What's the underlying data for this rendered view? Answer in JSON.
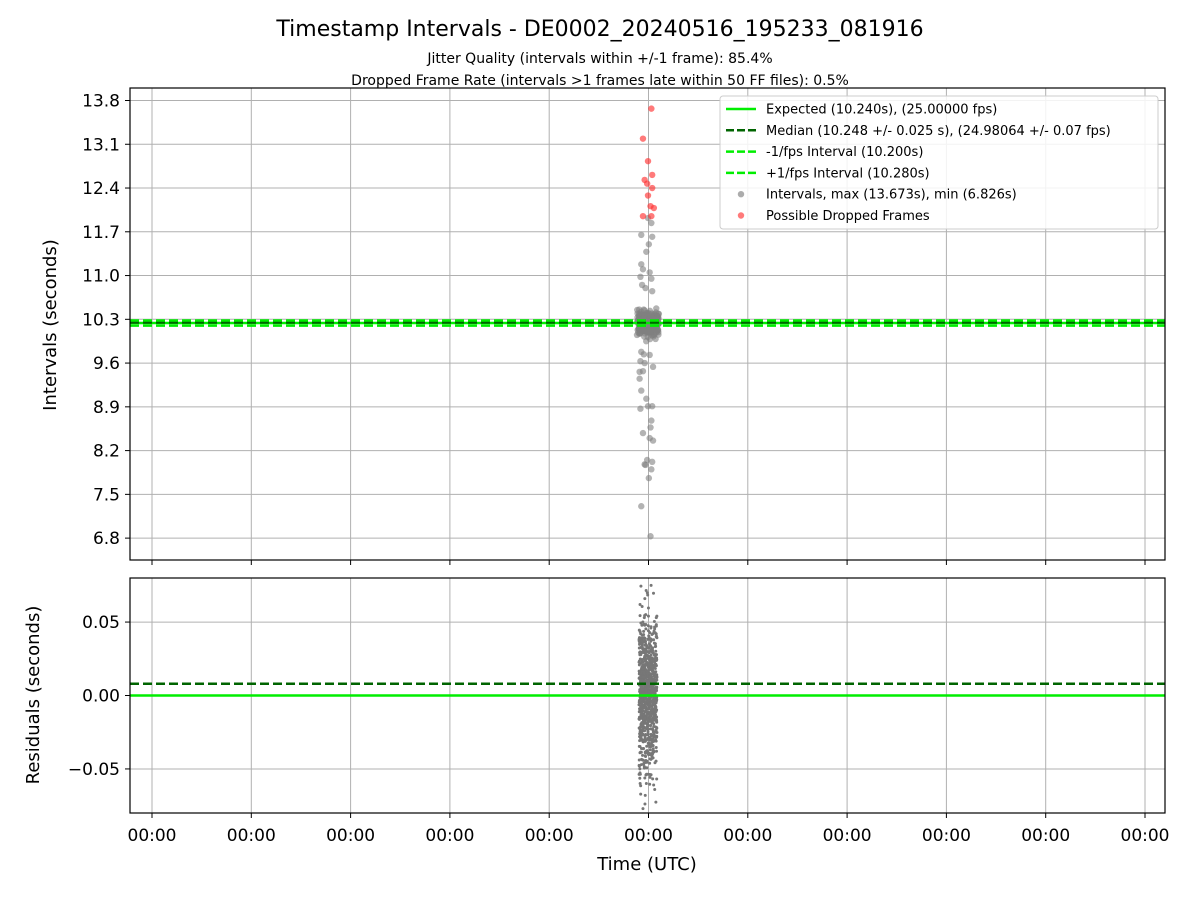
{
  "chart_data": {
    "type": "scatter",
    "title": "Timestamp Intervals - DE0002_20240516_195233_081916",
    "subtitle_1": "Jitter Quality (intervals within +/-1 frame): 85.4%",
    "subtitle_2": "Dropped Frame Rate (intervals >1 frames late within 50 FF files): 0.5%",
    "xlabel": "Time (UTC)",
    "x_tick_labels": [
      "00:00",
      "00:00",
      "00:00",
      "00:00",
      "00:00",
      "00:00",
      "00:00",
      "00:00",
      "00:00",
      "00:00",
      "00:00"
    ],
    "top_panel": {
      "ylabel": "Intervals (seconds)",
      "ylim": [
        6.45,
        14.0
      ],
      "y_ticks": [
        6.8,
        7.5,
        8.2,
        8.9,
        9.6,
        10.3,
        11.0,
        11.7,
        12.4,
        13.1,
        13.8
      ],
      "grid": true,
      "legend_position": "top-right",
      "lines": [
        {
          "name": "Expected (10.240s), (25.00000 fps)",
          "value": 10.24,
          "style": "solid",
          "color": "#00ee00"
        },
        {
          "name": "Median (10.248 +/- 0.025 s), (24.98064 +/- 0.07 fps)",
          "value": 10.248,
          "style": "dashed",
          "color": "#006400"
        },
        {
          "name": "-1/fps Interval (10.200s)",
          "value": 10.2,
          "style": "dashed",
          "color": "#00ee00"
        },
        {
          "name": "+1/fps Interval (10.280s)",
          "value": 10.28,
          "style": "dashed",
          "color": "#00ee00"
        }
      ],
      "intervals_series": {
        "name": "Intervals, max (13.673s), min (6.826s)",
        "color": "#808080",
        "max": 13.673,
        "min": 6.826,
        "outliers": [
          {
            "dx": 0.0,
            "y": 11.92
          },
          {
            "dx": 0.04,
            "y": 11.84
          },
          {
            "dx": -0.08,
            "y": 11.65
          },
          {
            "dx": 0.05,
            "y": 11.62
          },
          {
            "dx": 0.01,
            "y": 11.5
          },
          {
            "dx": -0.02,
            "y": 11.38
          },
          {
            "dx": -0.08,
            "y": 11.18
          },
          {
            "dx": -0.06,
            "y": 11.1
          },
          {
            "dx": 0.02,
            "y": 11.05
          },
          {
            "dx": -0.09,
            "y": 10.98
          },
          {
            "dx": 0.04,
            "y": 10.95
          },
          {
            "dx": -0.07,
            "y": 10.85
          },
          {
            "dx": -0.03,
            "y": 10.8
          },
          {
            "dx": 0.05,
            "y": 10.75
          },
          {
            "dx": -0.08,
            "y": 9.78
          },
          {
            "dx": -0.05,
            "y": 9.74
          },
          {
            "dx": 0.02,
            "y": 9.73
          },
          {
            "dx": -0.09,
            "y": 9.63
          },
          {
            "dx": -0.04,
            "y": 9.6
          },
          {
            "dx": 0.06,
            "y": 9.54
          },
          {
            "dx": -0.1,
            "y": 9.46
          },
          {
            "dx": -0.06,
            "y": 9.47
          },
          {
            "dx": -0.1,
            "y": 9.35
          },
          {
            "dx": -0.08,
            "y": 9.16
          },
          {
            "dx": -0.09,
            "y": 8.87
          },
          {
            "dx": 0.0,
            "y": 8.91
          },
          {
            "dx": 0.05,
            "y": 8.91
          },
          {
            "dx": -0.02,
            "y": 9.03
          },
          {
            "dx": 0.04,
            "y": 8.68
          },
          {
            "dx": 0.03,
            "y": 8.57
          },
          {
            "dx": -0.06,
            "y": 8.48
          },
          {
            "dx": 0.02,
            "y": 8.4
          },
          {
            "dx": 0.06,
            "y": 8.36
          },
          {
            "dx": -0.04,
            "y": 7.98
          },
          {
            "dx": -0.01,
            "y": 8.05
          },
          {
            "dx": 0.05,
            "y": 8.02
          },
          {
            "dx": -0.03,
            "y": 7.97
          },
          {
            "dx": 0.04,
            "y": 7.9
          },
          {
            "dx": 0.01,
            "y": 7.76
          },
          {
            "dx": -0.08,
            "y": 7.31
          },
          {
            "dx": 0.03,
            "y": 6.83
          }
        ]
      },
      "dropped_series": {
        "name": "Possible Dropped Frames",
        "color": "#ff3333",
        "points": [
          {
            "dx": 0.04,
            "y": 13.67
          },
          {
            "dx": -0.06,
            "y": 13.19
          },
          {
            "dx": 0.0,
            "y": 12.83
          },
          {
            "dx": 0.05,
            "y": 12.61
          },
          {
            "dx": -0.04,
            "y": 12.53
          },
          {
            "dx": -0.01,
            "y": 12.47
          },
          {
            "dx": 0.05,
            "y": 12.4
          },
          {
            "dx": 0.0,
            "y": 12.28
          },
          {
            "dx": 0.03,
            "y": 12.11
          },
          {
            "dx": 0.07,
            "y": 12.08
          },
          {
            "dx": -0.06,
            "y": 11.95
          },
          {
            "dx": 0.04,
            "y": 11.95
          }
        ]
      }
    },
    "bottom_panel": {
      "ylabel": "Residuals (seconds)",
      "ylim": [
        -0.08,
        0.08
      ],
      "y_ticks": [
        0.05,
        0.0,
        -0.05
      ],
      "y_tick_labels": [
        "0.05",
        "0.00",
        "−0.05"
      ],
      "grid": true,
      "lines": [
        {
          "value": 0.0,
          "style": "solid",
          "color": "#00ee00"
        },
        {
          "value": 0.008,
          "style": "dashed",
          "color": "#006400"
        }
      ],
      "residuals_series": {
        "color": "#777777",
        "range": [
          -0.077,
          0.075
        ]
      }
    }
  }
}
